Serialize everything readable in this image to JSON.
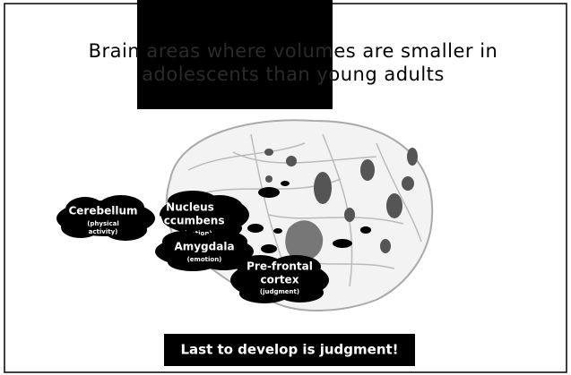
{
  "slide": {
    "title_lines": [
      "Brain areas where volumes are smaller in",
      "adolescents than young adults"
    ],
    "labels": [
      {
        "name": "Cerebellum",
        "note_lines": [
          "(physical",
          "activity)"
        ]
      },
      {
        "name_lines": [
          "Nucleus",
          "Accumbens"
        ],
        "note": "(motivation)"
      },
      {
        "name": "Amygdala",
        "note": "(emotion)"
      },
      {
        "name_lines": [
          "Pre-frontal",
          "cortex"
        ],
        "note": "(judgment)"
      }
    ],
    "footer": "Last to develop is judgment!"
  }
}
